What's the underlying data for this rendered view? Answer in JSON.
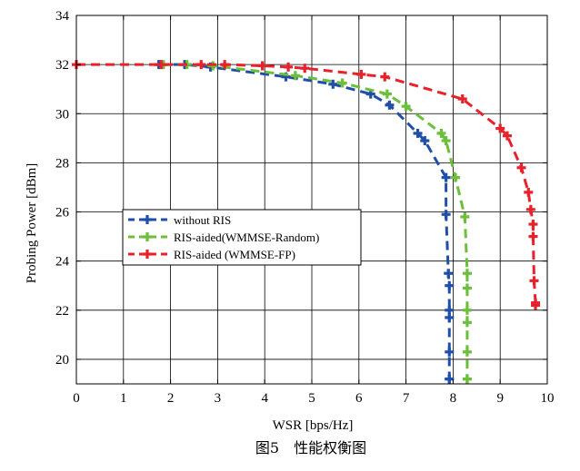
{
  "chart_data": {
    "type": "line",
    "title": "",
    "caption": "图5　性能权衡图",
    "xlabel": "WSR [bps/Hz]",
    "ylabel": "Probing Power [dBm]",
    "xlim": [
      0,
      10
    ],
    "ylim": [
      19,
      34
    ],
    "xticks": [
      0,
      1,
      2,
      3,
      4,
      5,
      6,
      7,
      8,
      9,
      10
    ],
    "yticks": [
      20,
      22,
      24,
      26,
      28,
      30,
      32,
      34
    ],
    "grid": true,
    "legend_position": "center-left",
    "series": [
      {
        "name": "without RIS",
        "color": "#1f4fa8",
        "x": [
          1.75,
          2.3,
          2.85,
          4.45,
          5.45,
          6.25,
          6.65,
          7.25,
          7.4,
          7.85,
          7.85,
          7.9,
          7.92,
          7.92,
          7.92,
          7.92,
          7.92,
          7.92
        ],
        "y": [
          32.0,
          32.0,
          31.9,
          31.5,
          31.2,
          30.8,
          30.35,
          29.2,
          28.9,
          27.4,
          25.9,
          23.5,
          23.0,
          22.0,
          21.7,
          20.3,
          19.2,
          19.2
        ]
      },
      {
        "name": "RIS-aided(WMMSE-Random)",
        "color": "#6cbf3a",
        "x": [
          1.85,
          2.35,
          2.9,
          4.65,
          5.65,
          6.6,
          7.0,
          7.75,
          7.85,
          8.05,
          8.25,
          8.3,
          8.3,
          8.3,
          8.3,
          8.3,
          8.3,
          8.3
        ],
        "y": [
          32.0,
          32.0,
          31.95,
          31.55,
          31.25,
          30.8,
          30.3,
          29.2,
          28.9,
          27.4,
          25.8,
          23.5,
          22.9,
          22.0,
          21.5,
          20.3,
          19.2,
          19.2
        ]
      },
      {
        "name": "RIS-aided (WMMSE-FP)",
        "color": "#e8212a",
        "x": [
          0.0,
          1.8,
          2.65,
          3.15,
          3.95,
          4.5,
          4.85,
          6.05,
          6.55,
          8.2,
          9.0,
          9.15,
          9.45,
          9.6,
          9.65,
          9.7,
          9.7,
          9.72,
          9.75,
          9.75
        ],
        "y": [
          32.0,
          32.0,
          32.0,
          32.0,
          31.95,
          31.9,
          31.85,
          31.6,
          31.5,
          30.6,
          29.4,
          29.1,
          27.8,
          26.8,
          26.1,
          25.5,
          25.0,
          23.2,
          22.3,
          22.2
        ]
      }
    ]
  }
}
